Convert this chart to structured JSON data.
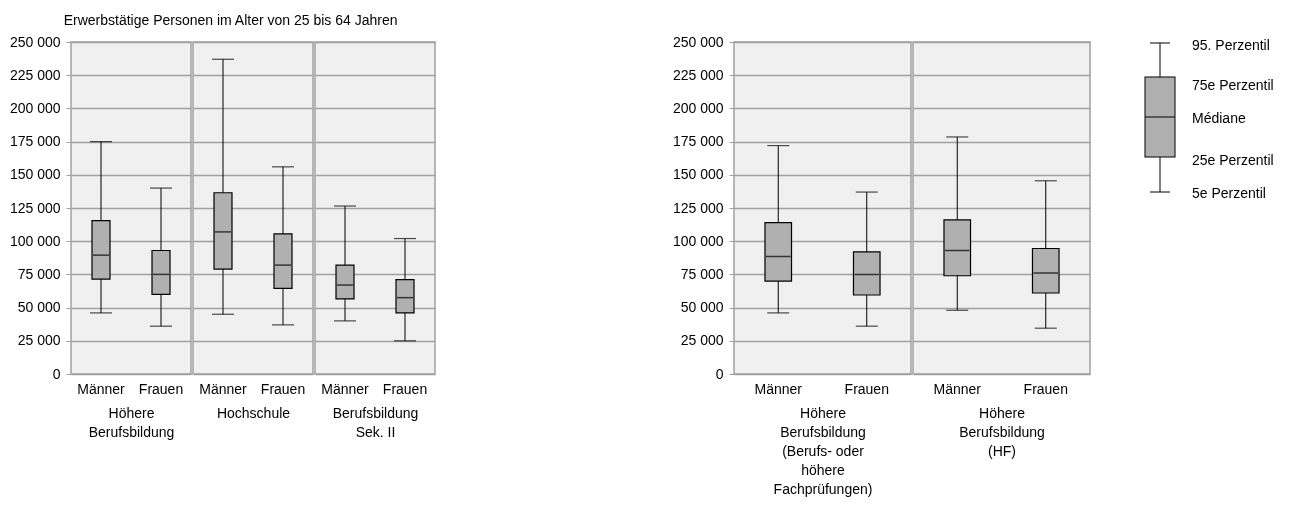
{
  "chart_data": [
    {
      "type": "box",
      "title": "Erwerbstätige Personen im Alter von 25 bis 64 Jahren",
      "xlabel": "Höhere Berufsbildung",
      "categories": [
        "Männer",
        "Frauen"
      ],
      "color": "#b0b0b0",
      "ylim": [
        0,
        250000
      ],
      "yticks": [
        {
          "value": 0,
          "label": "0"
        },
        {
          "value": 25000,
          "label": "25 000"
        },
        {
          "value": 50000,
          "label": "50 000"
        },
        {
          "value": 75000,
          "label": "75 000"
        },
        {
          "value": 100000,
          "label": "100 000"
        },
        {
          "value": 125000,
          "label": "125 000"
        },
        {
          "value": 150000,
          "label": "150 000"
        },
        {
          "value": 175000,
          "label": "175 000"
        },
        {
          "value": 200000,
          "label": "200 000"
        },
        {
          "value": 225000,
          "label": "225 000"
        },
        {
          "value": 250000,
          "label": "250 000"
        }
      ],
      "grid": "y",
      "boxes": [
        {
          "low": 46000,
          "q1": 71500,
          "median": 89500,
          "q3": 115500,
          "high": 175000
        },
        {
          "low": 36000,
          "q1": 60000,
          "median": 75000,
          "q3": 93000,
          "high": 140000
        }
      ]
    },
    {
      "type": "box",
      "xlabel": "Hochschule",
      "categories": [
        "Männer",
        "Frauen"
      ],
      "color": "#b0b0b0",
      "ylim": [
        0,
        250000
      ],
      "yticks": [
        0,
        25000,
        50000,
        75000,
        100000,
        125000,
        150000,
        175000,
        200000,
        225000,
        250000
      ],
      "grid": "y",
      "tick_labels": "x",
      "boxes": [
        {
          "low": 45000,
          "q1": 79000,
          "median": 107000,
          "q3": 136500,
          "high": 237000
        },
        {
          "low": 37000,
          "q1": 64500,
          "median": 82000,
          "q3": 105500,
          "high": 156000
        }
      ]
    },
    {
      "type": "box",
      "xlabel": "Berufsbildung Sek. II",
      "categories": [
        "Männer",
        "Frauen"
      ],
      "color": "#b0b0b0",
      "ylim": [
        0,
        250000
      ],
      "yticks": [
        0,
        25000,
        50000,
        75000,
        100000,
        125000,
        150000,
        175000,
        200000,
        225000,
        250000
      ],
      "grid": "y",
      "tick_labels": "x",
      "boxes": [
        {
          "low": 40000,
          "q1": 56500,
          "median": 67000,
          "q3": 82000,
          "high": 126500
        },
        {
          "low": 25000,
          "q1": 46000,
          "median": 57500,
          "q3": 71000,
          "high": 102000
        }
      ]
    },
    {
      "type": "box",
      "xlabel": "Höhere Berufsbildung (Berufs- oder höhere Fachprüfungen)",
      "categories": [
        "Männer",
        "Frauen"
      ],
      "color": "#b0b0b0",
      "ylim": [
        0,
        250000
      ],
      "yticks": [
        {
          "value": 0,
          "label": "0"
        },
        {
          "value": 25000,
          "label": "25 000"
        },
        {
          "value": 50000,
          "label": "50 000"
        },
        {
          "value": 75000,
          "label": "75 000"
        },
        {
          "value": 100000,
          "label": "100 000"
        },
        {
          "value": 125000,
          "label": "125 000"
        },
        {
          "value": 150000,
          "label": "150 000"
        },
        {
          "value": 175000,
          "label": "175 000"
        },
        {
          "value": 200000,
          "label": "200 000"
        },
        {
          "value": 225000,
          "label": "225 000"
        },
        {
          "value": 250000,
          "label": "250 000"
        }
      ],
      "grid": "y",
      "boxes": [
        {
          "low": 46000,
          "q1": 70000,
          "median": 88500,
          "q3": 114000,
          "high": 172000
        },
        {
          "low": 36000,
          "q1": 59500,
          "median": 75000,
          "q3": 92000,
          "high": 137000
        }
      ]
    },
    {
      "type": "box",
      "xlabel": "Höhere Berufsbildung (HF)",
      "categories": [
        "Männer",
        "Frauen"
      ],
      "color": "#b0b0b0",
      "ylim": [
        0,
        250000
      ],
      "yticks": [
        0,
        25000,
        50000,
        75000,
        100000,
        125000,
        150000,
        175000,
        200000,
        225000,
        250000
      ],
      "grid": "y",
      "tick_labels": "x",
      "annotations": [
        "95. Perzentil",
        "75e Perzentil",
        "Médiane",
        "25e Perzentil",
        "5e Perzentil"
      ],
      "boxes": [
        {
          "low": 48000,
          "q1": 74000,
          "median": 93000,
          "q3": 116000,
          "high": 178500
        },
        {
          "low": 34500,
          "q1": 61000,
          "median": 76000,
          "q3": 94500,
          "high": 145500
        }
      ]
    }
  ]
}
